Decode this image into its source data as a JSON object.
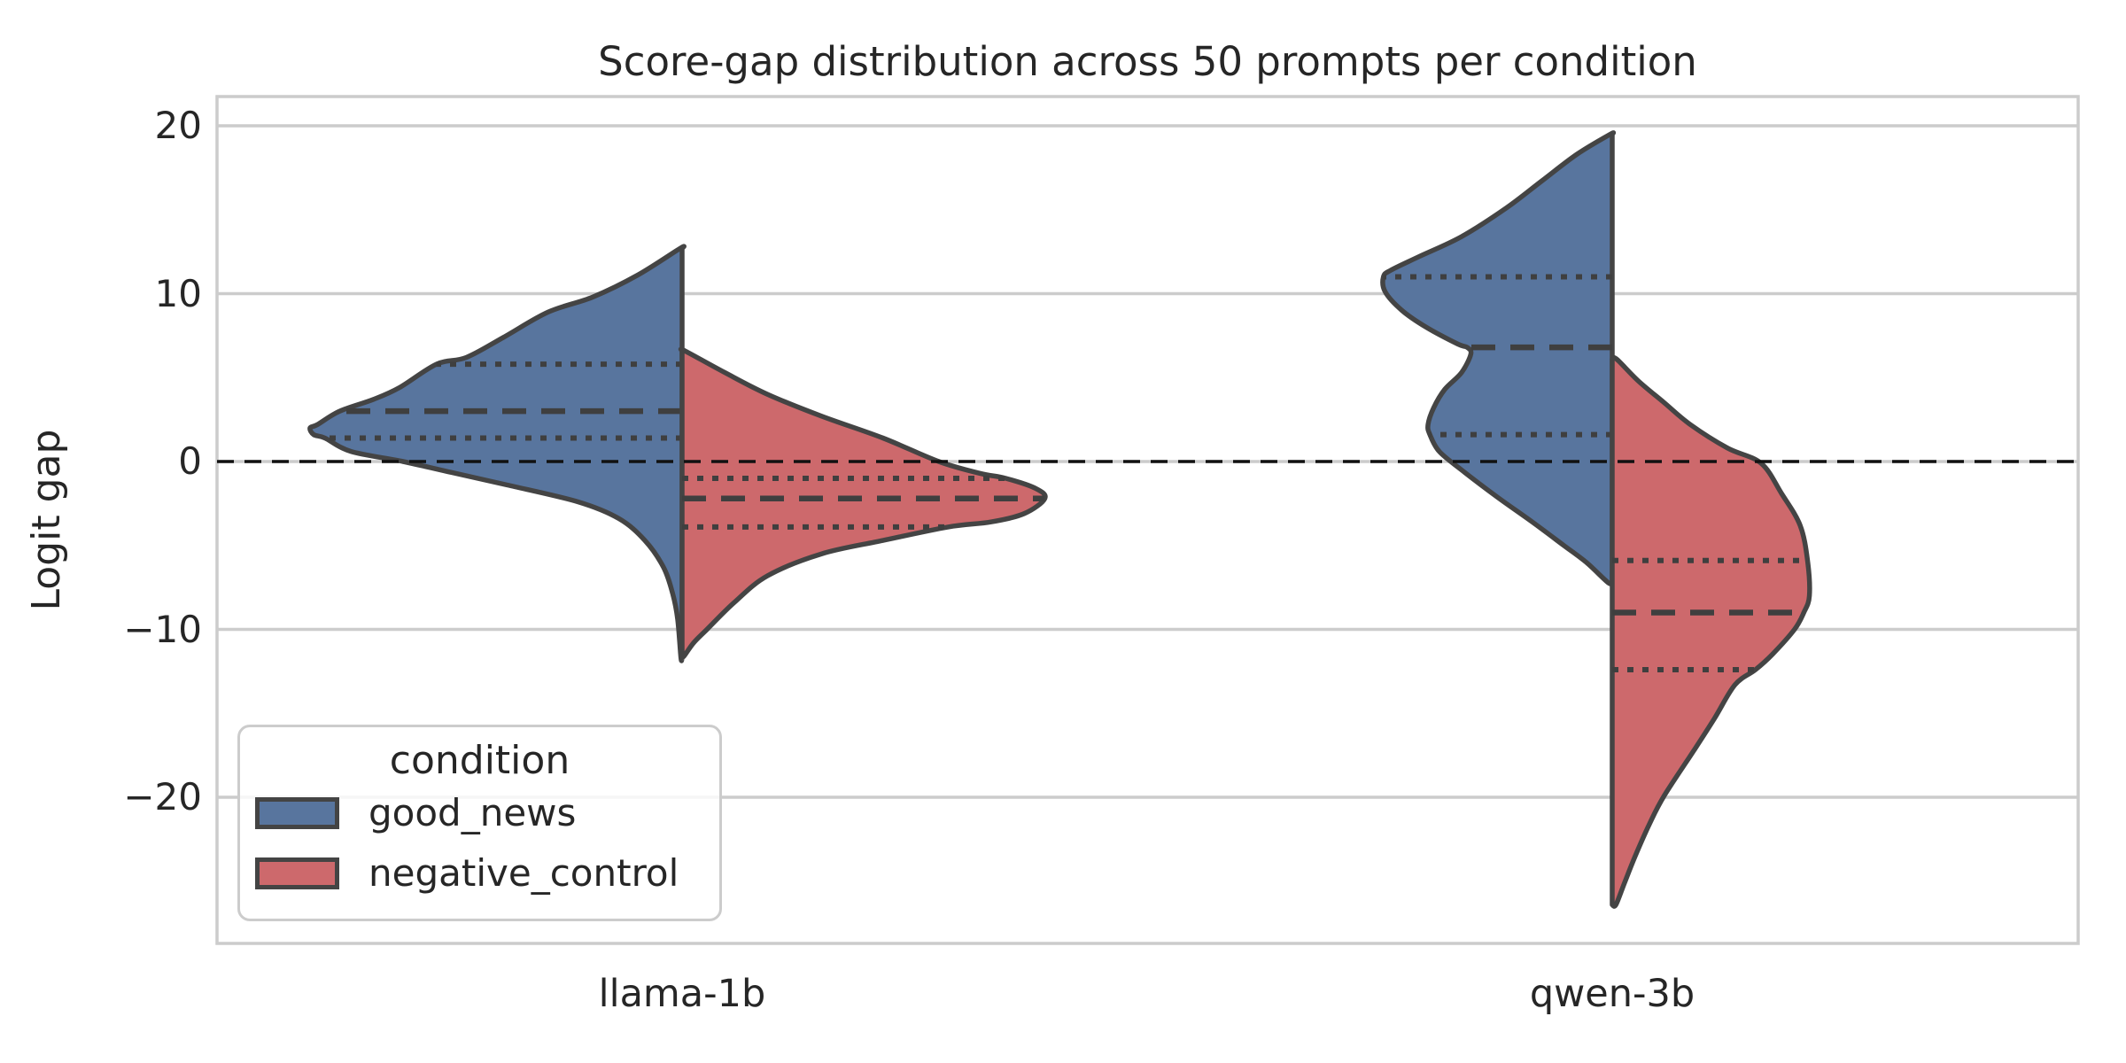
{
  "chart_data": {
    "type": "violin",
    "split": true,
    "title": "Score-gap distribution across 50 prompts per condition",
    "ylabel": "Logit gap",
    "xlabel": "",
    "categories": [
      "llama-1b",
      "qwen-3b"
    ],
    "y_ticks": [
      20,
      10,
      0,
      -10,
      -20
    ],
    "y_tick_labels": [
      "20",
      "10",
      "0",
      "−10",
      "−20"
    ],
    "y_range": [
      -28.7,
      21.7
    ],
    "reference_line": 0,
    "grid": true,
    "inner": "quartile",
    "legend": {
      "title": "condition",
      "position": "lower left",
      "entries": [
        {
          "label": "good_news",
          "color": "#58759E"
        },
        {
          "label": "negative_control",
          "color": "#CD696C"
        }
      ]
    },
    "style": {
      "edge_color": "#444444",
      "quartile_line_color": "#3F3F3F",
      "grid_color": "#CCCCCC",
      "spine_color": "#CCCCCC",
      "zero_line_color": "#111111",
      "background": "#FFFFFF",
      "text_color": "#262626"
    },
    "series": [
      {
        "category": "llama-1b",
        "name": "good_news",
        "side": "left",
        "color": "#58759E",
        "quartiles": {
          "q1": 1.4,
          "median": 3.0,
          "q3": 5.8
        },
        "min": -11.7,
        "max": 12.7,
        "profile": [
          [
            12.7,
            0.005
          ],
          [
            11.1,
            0.12
          ],
          [
            9.8,
            0.24
          ],
          [
            8.9,
            0.36
          ],
          [
            7.4,
            0.48
          ],
          [
            6.2,
            0.58
          ],
          [
            5.8,
            0.66
          ],
          [
            4.4,
            0.76
          ],
          [
            3.7,
            0.83
          ],
          [
            3.0,
            0.92
          ],
          [
            2.2,
            0.98
          ],
          [
            2.0,
            1.0
          ],
          [
            1.6,
            0.99
          ],
          [
            1.4,
            0.96
          ],
          [
            0.6,
            0.89
          ],
          [
            0.0,
            0.75
          ],
          [
            -0.6,
            0.63
          ],
          [
            -1.4,
            0.47
          ],
          [
            -2.4,
            0.28
          ],
          [
            -3.4,
            0.17
          ],
          [
            -4.7,
            0.1
          ],
          [
            -6.3,
            0.05
          ],
          [
            -7.9,
            0.025
          ],
          [
            -9.4,
            0.012
          ],
          [
            -11.7,
            0.003
          ]
        ]
      },
      {
        "category": "llama-1b",
        "name": "negative_control",
        "side": "right",
        "color": "#CD696C",
        "quartiles": {
          "q1": -3.9,
          "median": -2.2,
          "q3": -1.0
        },
        "min": -11.6,
        "max": 6.6,
        "profile": [
          [
            6.6,
            0.007
          ],
          [
            5.3,
            0.115
          ],
          [
            4.0,
            0.23
          ],
          [
            2.7,
            0.375
          ],
          [
            1.4,
            0.54
          ],
          [
            0.0,
            0.69
          ],
          [
            -0.7,
            0.8
          ],
          [
            -1.0,
            0.87
          ],
          [
            -1.6,
            0.95
          ],
          [
            -2.2,
            0.975
          ],
          [
            -3.1,
            0.92
          ],
          [
            -3.6,
            0.83
          ],
          [
            -3.9,
            0.715
          ],
          [
            -4.7,
            0.54
          ],
          [
            -5.5,
            0.375
          ],
          [
            -6.8,
            0.23
          ],
          [
            -8.4,
            0.14
          ],
          [
            -10.0,
            0.067
          ],
          [
            -10.8,
            0.031
          ],
          [
            -11.6,
            0.005
          ]
        ]
      },
      {
        "category": "qwen-3b",
        "name": "good_news",
        "side": "left",
        "color": "#58759E",
        "quartiles": {
          "q1": 1.6,
          "median": 6.8,
          "q3": 11.0
        },
        "min": -7.2,
        "max": 19.5,
        "profile": [
          [
            19.5,
            0.005
          ],
          [
            18.3,
            0.095
          ],
          [
            16.7,
            0.19
          ],
          [
            15.1,
            0.285
          ],
          [
            13.4,
            0.405
          ],
          [
            12.2,
            0.52
          ],
          [
            11.4,
            0.595
          ],
          [
            11.0,
            0.615
          ],
          [
            10.1,
            0.61
          ],
          [
            9.0,
            0.565
          ],
          [
            8.0,
            0.5
          ],
          [
            7.0,
            0.415
          ],
          [
            6.8,
            0.39
          ],
          [
            6.4,
            0.38
          ],
          [
            5.3,
            0.405
          ],
          [
            4.3,
            0.45
          ],
          [
            3.2,
            0.48
          ],
          [
            2.2,
            0.495
          ],
          [
            1.6,
            0.49
          ],
          [
            0.6,
            0.465
          ],
          [
            -0.5,
            0.405
          ],
          [
            -2.1,
            0.31
          ],
          [
            -3.6,
            0.215
          ],
          [
            -5.0,
            0.13
          ],
          [
            -6.0,
            0.07
          ],
          [
            -7.2,
            0.012
          ]
        ]
      },
      {
        "category": "qwen-3b",
        "name": "negative_control",
        "side": "right",
        "color": "#CD696C",
        "quartiles": {
          "q1": -12.4,
          "median": -9.0,
          "q3": -5.9
        },
        "min": -26.4,
        "max": 6.1,
        "profile": [
          [
            6.1,
            0.012
          ],
          [
            4.8,
            0.07
          ],
          [
            3.5,
            0.14
          ],
          [
            2.2,
            0.21
          ],
          [
            0.8,
            0.31
          ],
          [
            -0.1,
            0.4
          ],
          [
            -1.9,
            0.455
          ],
          [
            -3.8,
            0.505
          ],
          [
            -5.9,
            0.525
          ],
          [
            -8.0,
            0.53
          ],
          [
            -9.0,
            0.515
          ],
          [
            -10.0,
            0.49
          ],
          [
            -11.5,
            0.43
          ],
          [
            -12.4,
            0.385
          ],
          [
            -13.3,
            0.33
          ],
          [
            -15.3,
            0.275
          ],
          [
            -17.2,
            0.22
          ],
          [
            -19.9,
            0.14
          ],
          [
            -21.6,
            0.1
          ],
          [
            -23.5,
            0.062
          ],
          [
            -25.1,
            0.033
          ],
          [
            -26.4,
            0.01
          ]
        ]
      }
    ]
  }
}
